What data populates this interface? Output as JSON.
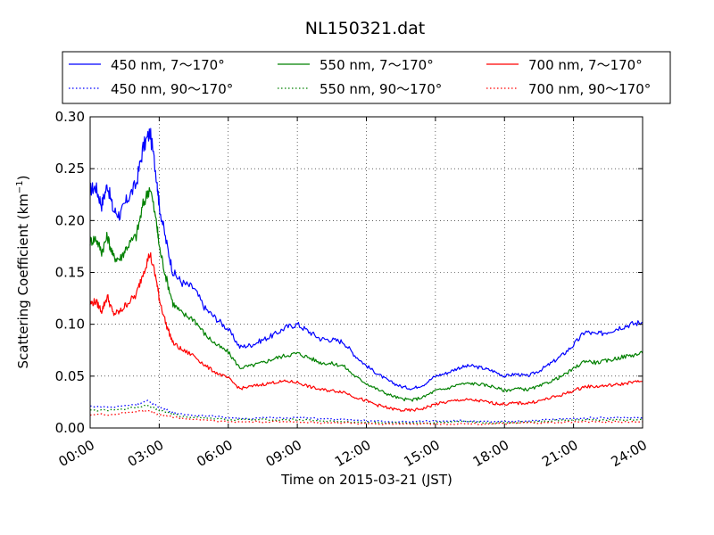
{
  "chart_data": {
    "type": "line",
    "title": "NL150321.dat",
    "xlabel": "Time on 2015-03-21 (JST)",
    "ylabel": "Scattering Coefficient (km",
    "ylabel_sup": "−1",
    "ylabel_end": ")",
    "xlim": [
      0,
      24
    ],
    "ylim": [
      0,
      0.3
    ],
    "x_unit": "hours",
    "x_ticks": [
      0,
      3,
      6,
      9,
      12,
      15,
      18,
      21,
      24
    ],
    "x_tick_labels": [
      "00:00",
      "03:00",
      "06:00",
      "09:00",
      "12:00",
      "15:00",
      "18:00",
      "21:00",
      "24:00"
    ],
    "y_ticks": [
      0,
      0.05,
      0.1,
      0.15,
      0.2,
      0.25,
      0.3
    ],
    "y_tick_labels": [
      "0.00",
      "0.05",
      "0.10",
      "0.15",
      "0.20",
      "0.25",
      "0.30"
    ],
    "grid": true,
    "legend_placement": "above plot, 3 columns",
    "series": [
      {
        "name": "450 nm, 7～170°",
        "color": "#0000ff",
        "style": "solid",
        "x": [
          0,
          0.25,
          0.5,
          0.75,
          1.0,
          1.3,
          1.6,
          2.0,
          2.3,
          2.6,
          2.9,
          3.0,
          3.3,
          3.6,
          4.0,
          4.5,
          5.0,
          5.5,
          6.0,
          6.5,
          7.0,
          7.5,
          8.0,
          8.5,
          9.0,
          9.5,
          10.0,
          10.5,
          11.0,
          11.5,
          12.0,
          12.5,
          13.0,
          13.5,
          14.0,
          14.5,
          15.0,
          15.5,
          16.0,
          16.5,
          17.0,
          17.5,
          18.0,
          18.5,
          19.0,
          19.5,
          20.0,
          20.5,
          21.0,
          21.5,
          22.0,
          22.5,
          23.0,
          23.5,
          24.0
        ],
        "y": [
          0.23,
          0.232,
          0.215,
          0.235,
          0.21,
          0.205,
          0.22,
          0.235,
          0.27,
          0.285,
          0.24,
          0.215,
          0.18,
          0.15,
          0.14,
          0.135,
          0.115,
          0.105,
          0.095,
          0.078,
          0.08,
          0.085,
          0.09,
          0.097,
          0.1,
          0.093,
          0.086,
          0.085,
          0.083,
          0.07,
          0.06,
          0.052,
          0.045,
          0.04,
          0.038,
          0.042,
          0.05,
          0.053,
          0.058,
          0.06,
          0.058,
          0.055,
          0.05,
          0.052,
          0.05,
          0.055,
          0.062,
          0.07,
          0.08,
          0.093,
          0.09,
          0.093,
          0.097,
          0.1,
          0.102
        ]
      },
      {
        "name": "550 nm, 7～170°",
        "color": "#008000",
        "style": "solid",
        "x": [
          0,
          0.25,
          0.5,
          0.75,
          1.0,
          1.3,
          1.6,
          2.0,
          2.3,
          2.6,
          2.9,
          3.0,
          3.3,
          3.6,
          4.0,
          4.5,
          5.0,
          5.5,
          6.0,
          6.5,
          7.0,
          7.5,
          8.0,
          8.5,
          9.0,
          9.5,
          10.0,
          10.5,
          11.0,
          11.5,
          12.0,
          12.5,
          13.0,
          13.5,
          14.0,
          14.5,
          15.0,
          15.5,
          16.0,
          16.5,
          17.0,
          17.5,
          18.0,
          18.5,
          19.0,
          19.5,
          20.0,
          20.5,
          21.0,
          21.5,
          22.0,
          22.5,
          23.0,
          23.5,
          24.0
        ],
        "y": [
          0.18,
          0.183,
          0.17,
          0.185,
          0.165,
          0.163,
          0.175,
          0.185,
          0.215,
          0.233,
          0.195,
          0.175,
          0.145,
          0.12,
          0.11,
          0.105,
          0.09,
          0.08,
          0.073,
          0.058,
          0.06,
          0.063,
          0.067,
          0.07,
          0.072,
          0.068,
          0.063,
          0.062,
          0.06,
          0.05,
          0.043,
          0.037,
          0.032,
          0.028,
          0.027,
          0.03,
          0.036,
          0.038,
          0.042,
          0.043,
          0.042,
          0.04,
          0.036,
          0.038,
          0.037,
          0.04,
          0.045,
          0.05,
          0.057,
          0.065,
          0.063,
          0.065,
          0.068,
          0.07,
          0.072
        ]
      },
      {
        "name": "700 nm, 7～170°",
        "color": "#ff0000",
        "style": "solid",
        "x": [
          0,
          0.25,
          0.5,
          0.75,
          1.0,
          1.3,
          1.6,
          2.0,
          2.3,
          2.6,
          2.9,
          3.0,
          3.3,
          3.6,
          4.0,
          4.5,
          5.0,
          5.5,
          6.0,
          6.5,
          7.0,
          7.5,
          8.0,
          8.5,
          9.0,
          9.5,
          10.0,
          10.5,
          11.0,
          11.5,
          12.0,
          12.5,
          13.0,
          13.5,
          14.0,
          14.5,
          15.0,
          15.5,
          16.0,
          16.5,
          17.0,
          17.5,
          18.0,
          18.5,
          19.0,
          19.5,
          20.0,
          20.5,
          21.0,
          21.5,
          22.0,
          22.5,
          23.0,
          23.5,
          24.0
        ],
        "y": [
          0.12,
          0.122,
          0.113,
          0.127,
          0.11,
          0.112,
          0.12,
          0.128,
          0.15,
          0.168,
          0.14,
          0.125,
          0.1,
          0.082,
          0.075,
          0.07,
          0.06,
          0.053,
          0.048,
          0.038,
          0.04,
          0.042,
          0.044,
          0.045,
          0.044,
          0.04,
          0.037,
          0.036,
          0.035,
          0.03,
          0.026,
          0.022,
          0.019,
          0.017,
          0.017,
          0.019,
          0.023,
          0.025,
          0.027,
          0.027,
          0.026,
          0.024,
          0.023,
          0.024,
          0.024,
          0.026,
          0.029,
          0.032,
          0.036,
          0.04,
          0.04,
          0.041,
          0.042,
          0.044,
          0.045
        ]
      },
      {
        "name": "450 nm, 90～170°",
        "color": "#0000ff",
        "style": "dotted",
        "x": [
          0,
          1.0,
          2.0,
          2.5,
          3.0,
          3.5,
          4.0,
          5.0,
          6.0,
          7.0,
          8.0,
          9.0,
          10.0,
          11.0,
          12.0,
          13.0,
          14.0,
          15.0,
          16.0,
          17.0,
          18.0,
          19.0,
          20.0,
          21.0,
          22.0,
          23.0,
          24.0
        ],
        "y": [
          0.021,
          0.02,
          0.023,
          0.026,
          0.02,
          0.016,
          0.013,
          0.012,
          0.01,
          0.009,
          0.01,
          0.01,
          0.009,
          0.008,
          0.007,
          0.006,
          0.006,
          0.007,
          0.007,
          0.006,
          0.006,
          0.007,
          0.008,
          0.009,
          0.01,
          0.01,
          0.01
        ]
      },
      {
        "name": "550 nm, 90～170°",
        "color": "#008000",
        "style": "dotted",
        "x": [
          0,
          1.0,
          2.0,
          2.5,
          3.0,
          3.5,
          4.0,
          5.0,
          6.0,
          7.0,
          8.0,
          9.0,
          10.0,
          11.0,
          12.0,
          13.0,
          14.0,
          15.0,
          16.0,
          17.0,
          18.0,
          19.0,
          20.0,
          21.0,
          22.0,
          23.0,
          24.0
        ],
        "y": [
          0.017,
          0.017,
          0.02,
          0.022,
          0.017,
          0.014,
          0.011,
          0.01,
          0.008,
          0.008,
          0.008,
          0.008,
          0.007,
          0.006,
          0.005,
          0.005,
          0.005,
          0.005,
          0.006,
          0.005,
          0.005,
          0.006,
          0.007,
          0.008,
          0.008,
          0.008,
          0.008
        ]
      },
      {
        "name": "700 nm, 90～170°",
        "color": "#ff0000",
        "style": "dotted",
        "x": [
          0,
          1.0,
          2.0,
          2.5,
          3.0,
          3.5,
          4.0,
          5.0,
          6.0,
          7.0,
          8.0,
          9.0,
          10.0,
          11.0,
          12.0,
          13.0,
          14.0,
          15.0,
          16.0,
          17.0,
          18.0,
          19.0,
          20.0,
          21.0,
          22.0,
          23.0,
          24.0
        ],
        "y": [
          0.013,
          0.013,
          0.016,
          0.017,
          0.013,
          0.011,
          0.009,
          0.008,
          0.006,
          0.006,
          0.006,
          0.006,
          0.005,
          0.005,
          0.004,
          0.004,
          0.004,
          0.004,
          0.004,
          0.004,
          0.004,
          0.005,
          0.005,
          0.006,
          0.006,
          0.006,
          0.006
        ]
      }
    ]
  }
}
